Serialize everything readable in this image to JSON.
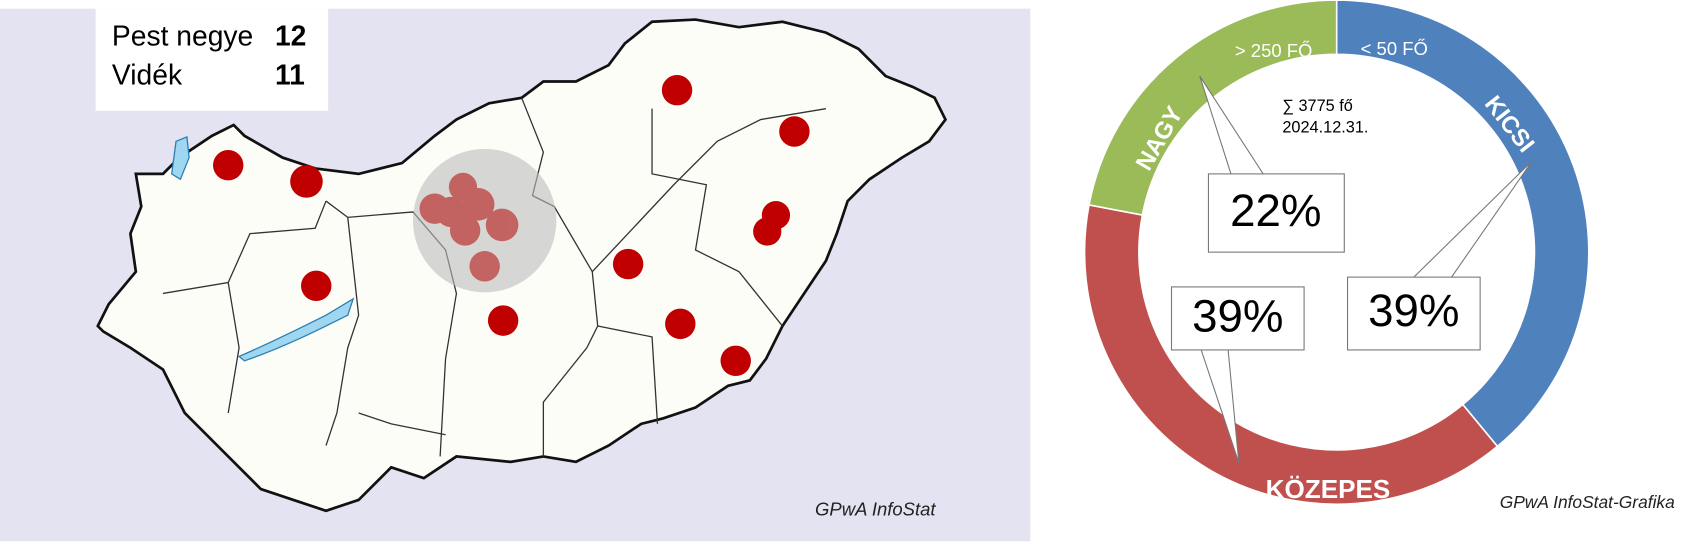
{
  "map": {
    "legend": [
      {
        "label": "Pest negye",
        "count": 12
      },
      {
        "label": "Vidék",
        "count": 11
      }
    ],
    "credit": "GPwA InfoStat"
  },
  "chart_data": {
    "type": "pie",
    "donut": true,
    "categories": [
      "KICSI",
      "KÖZEPES",
      "NAGY"
    ],
    "size_labels": [
      "< 50 FŐ",
      null,
      "> 250 FŐ"
    ],
    "values": [
      39,
      39,
      22
    ],
    "value_labels": [
      "39%",
      "39%",
      "22%"
    ],
    "colors": [
      "#4f81bd",
      "#c0504d",
      "#9bbb59"
    ],
    "annotations": [
      "∑  3775 fő",
      "2024.12.31."
    ],
    "credit": "GPwA InfoStat-Grafika"
  }
}
